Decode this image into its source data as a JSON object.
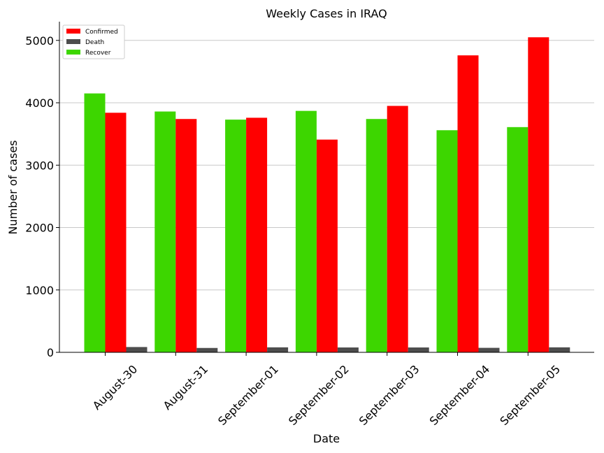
{
  "chart_data": {
    "type": "bar",
    "title": "Weekly Cases in IRAQ",
    "xlabel": "Date",
    "ylabel": "Number of cases",
    "categories": [
      "August-30",
      "August-31",
      "September-01",
      "September-02",
      "September-03",
      "September-04",
      "September-05"
    ],
    "series": [
      {
        "name": "Recover",
        "color": "#3dd600",
        "values": [
          4150,
          3860,
          3730,
          3870,
          3740,
          3560,
          3610
        ]
      },
      {
        "name": "Confirmed",
        "color": "#ff0000",
        "values": [
          3840,
          3740,
          3760,
          3410,
          3950,
          4760,
          5050
        ]
      },
      {
        "name": "Death",
        "color": "#4d4d4d",
        "values": [
          85,
          70,
          80,
          78,
          78,
          72,
          80
        ]
      }
    ],
    "legend_order": [
      "Confirmed",
      "Death",
      "Recover"
    ],
    "legend_position": "top-left",
    "ylim": [
      0,
      5300
    ],
    "yticks": [
      0,
      1000,
      2000,
      3000,
      4000,
      5000
    ],
    "grid": "horizontal"
  }
}
